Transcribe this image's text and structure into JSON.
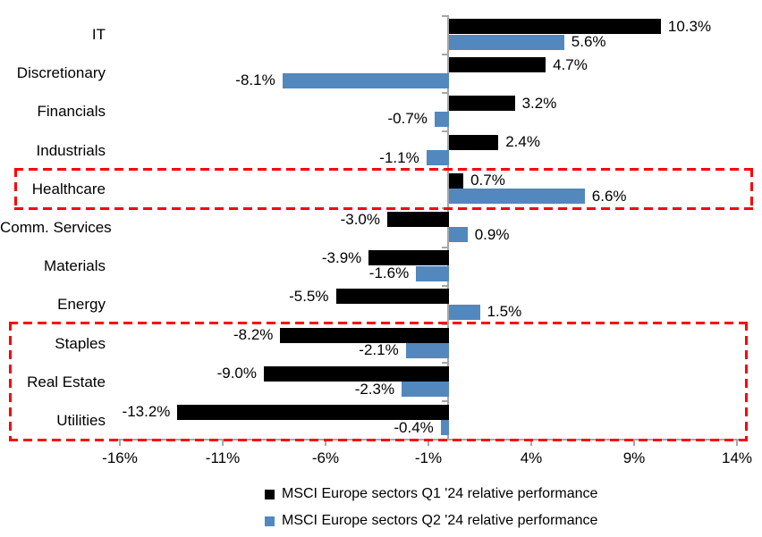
{
  "chart_data": {
    "type": "bar",
    "orientation": "horizontal",
    "title": "",
    "categories": [
      "IT",
      "Discretionary",
      "Financials",
      "Industrials",
      "Healthcare",
      "Comm. Services",
      "Materials",
      "Energy",
      "Staples",
      "Real Estate",
      "Utilities"
    ],
    "series": [
      {
        "name": "MSCI Europe sectors Q1 '24 relative performance",
        "color": "#000000",
        "values": [
          10.3,
          4.7,
          3.2,
          2.4,
          0.7,
          -3.0,
          -3.9,
          -5.5,
          -8.2,
          -9.0,
          -13.2
        ],
        "labels": [
          "10.3%",
          "4.7%",
          "3.2%",
          "2.4%",
          "0.7%",
          "-3.0%",
          "-3.9%",
          "-5.5%",
          "-8.2%",
          "-9.0%",
          "-13.2%"
        ]
      },
      {
        "name": "MSCI Europe sectors Q2 '24 relative performance",
        "color": "#5288BD",
        "values": [
          5.6,
          -8.1,
          -0.7,
          -1.1,
          6.6,
          0.9,
          -1.6,
          1.5,
          -2.1,
          -2.3,
          -0.4
        ],
        "labels": [
          "5.6%",
          "-8.1%",
          "-0.7%",
          "-1.1%",
          "6.6%",
          "0.9%",
          "-1.6%",
          "1.5%",
          "-2.1%",
          "-2.3%",
          "-0.4%"
        ]
      }
    ],
    "x_axis": {
      "tick_labels": [
        "-16%",
        "-11%",
        "-6%",
        "-1%",
        "4%",
        "9%",
        "14%"
      ],
      "tick_values": [
        -16,
        -11,
        -6,
        -1,
        4,
        9,
        14
      ],
      "min": -16,
      "max": 14,
      "unit": "%"
    },
    "grid": false,
    "data_labels": true,
    "legend_position": "bottom",
    "legend": [
      "MSCI Europe sectors Q1 '24 relative performance",
      "MSCI Europe sectors Q2 '24 relative performance"
    ],
    "highlight_boxes": [
      {
        "name": "healthcare-highlight",
        "first_row": 4,
        "last_row": 4,
        "color": "#FF0000"
      },
      {
        "name": "defensives-highlight",
        "first_row": 8,
        "last_row": 10,
        "color": "#FF0000"
      }
    ]
  },
  "colors": {
    "q1_bar": "#000000",
    "q2_bar": "#5288BD",
    "axis": "#A6A6A6",
    "highlight": "#FF0000",
    "text": "#000000",
    "background": "#FFFFFF"
  }
}
